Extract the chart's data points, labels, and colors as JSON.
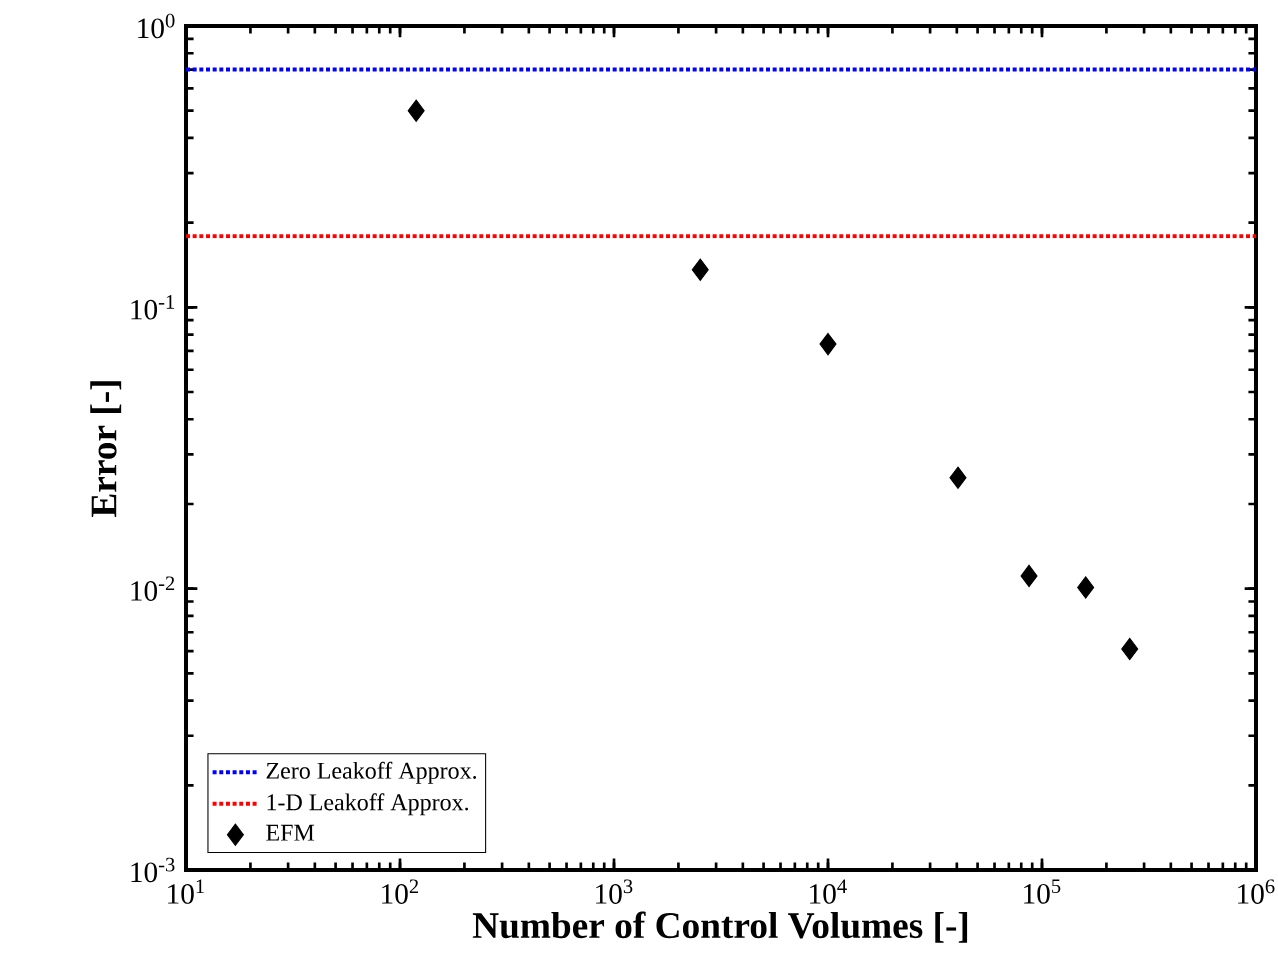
{
  "chart_data": {
    "type": "scatter",
    "xlabel": "Number of Control Volumes [-]",
    "ylabel": "Error [-]",
    "log": "xy",
    "xlim": [
      10,
      1000000
    ],
    "ylim": [
      0.001,
      1
    ],
    "xticks": [
      {
        "value": 10,
        "label": "10$^{1}$"
      },
      {
        "value": 100,
        "label": "10$^{2}$"
      },
      {
        "value": 1000,
        "label": "10$^{3}$"
      },
      {
        "value": 10000,
        "label": "10$^{4}$"
      },
      {
        "value": 100000,
        "label": "10$^{5}$"
      },
      {
        "value": 1000000,
        "label": "10$^{6}$"
      }
    ],
    "yticks": [
      {
        "value": 0.001,
        "label": "10$^{-3}$"
      },
      {
        "value": 0.01,
        "label": "10$^{-2}$"
      },
      {
        "value": 0.1,
        "label": "10$^{-1}$"
      },
      {
        "value": 1,
        "label": "10$^{0}$"
      }
    ],
    "ref_lines": [
      {
        "axis": "y",
        "value": 0.7,
        "label": "Zero Leakoff Approx.",
        "color": "#0000ff",
        "line_style": "dotted"
      },
      {
        "axis": "y",
        "value": 0.179,
        "label": "1-D Leakoff Approx.",
        "color": "#ff0000",
        "line_style": "dotted"
      }
    ],
    "x": [
      119,
      2530,
      10000,
      40500,
      87000,
      160000,
      257000
    ],
    "series": [
      {
        "name": "EFM",
        "color": "#000000",
        "values": [
          0.5,
          0.136,
          0.074,
          0.0248,
          0.0111,
          0.0101,
          0.0061
        ]
      }
    ],
    "marker": "diamond",
    "legend": "bottom left",
    "grid": false
  }
}
